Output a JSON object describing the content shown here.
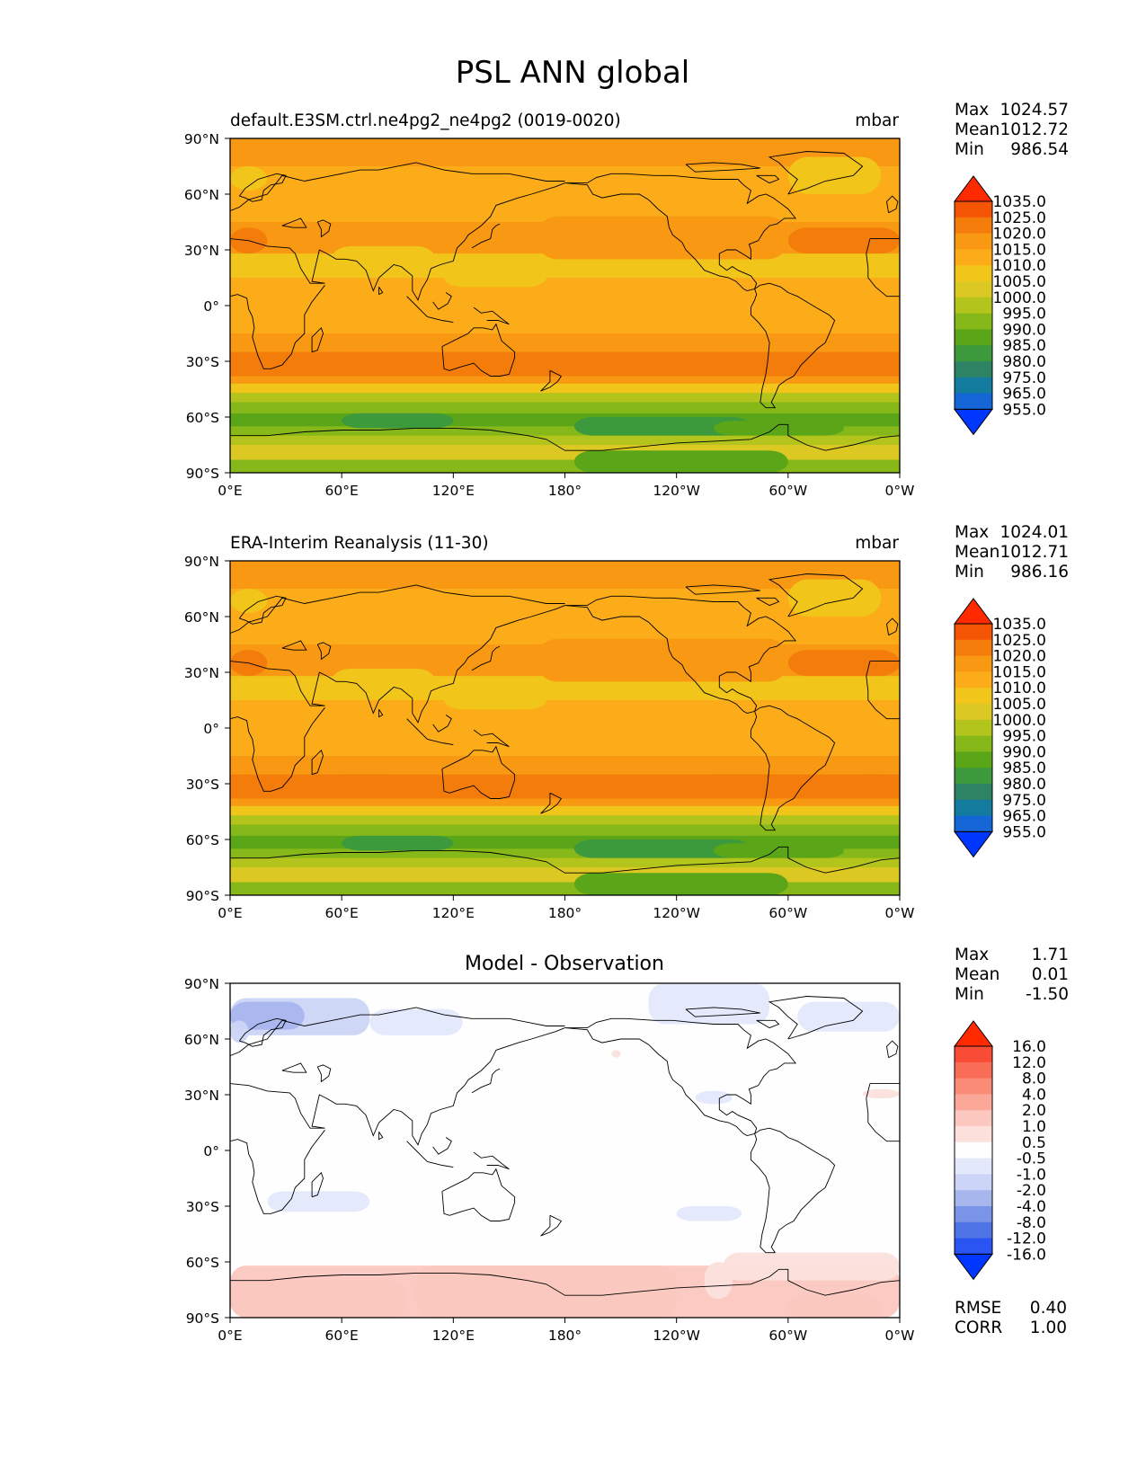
{
  "title": "PSL ANN global",
  "colors": {
    "psl_levels": [
      "#0037ff",
      "#1466d6",
      "#127b9e",
      "#2e8364",
      "#3c9a3c",
      "#5aa518",
      "#87b81a",
      "#b3c41c",
      "#dcc823",
      "#f2c51a",
      "#fbac18",
      "#f89813",
      "#f47c0b",
      "#f45505",
      "#ff2a00"
    ],
    "diff_levels": [
      "#0037ff",
      "#2a55f3",
      "#4e74e6",
      "#7a94e8",
      "#a8b6ee",
      "#ccd5f7",
      "#e3e8fb",
      "#fefefe",
      "#fbe0dc",
      "#fbc7bf",
      "#fba898",
      "#fa8b76",
      "#f96c56",
      "#f84c36",
      "#ff2a00"
    ],
    "coast": "#000000"
  },
  "panels": [
    {
      "id": "model",
      "title_left": "default.E3SM.ctrl.ne4pg2_ne4pg2 (0019-0020)",
      "title_center": "",
      "units": "mbar",
      "stats": [
        {
          "label": "Max",
          "value": "1024.57"
        },
        {
          "label": "Mean",
          "value": "1012.72"
        },
        {
          "label": "Min",
          "value": "986.54"
        }
      ],
      "colorbar_ticks": [
        "1035.0",
        "1025.0",
        "1020.0",
        "1015.0",
        "1010.0",
        "1005.0",
        "1000.0",
        "995.0",
        "990.0",
        "985.0",
        "980.0",
        "975.0",
        "965.0",
        "955.0"
      ],
      "metrics": []
    },
    {
      "id": "obs",
      "title_left": "ERA-Interim Reanalysis (11-30)",
      "title_center": "",
      "units": "mbar",
      "stats": [
        {
          "label": "Max",
          "value": "1024.01"
        },
        {
          "label": "Mean",
          "value": "1012.71"
        },
        {
          "label": "Min",
          "value": "986.16"
        }
      ],
      "colorbar_ticks": [
        "1035.0",
        "1025.0",
        "1020.0",
        "1015.0",
        "1010.0",
        "1005.0",
        "1000.0",
        "995.0",
        "990.0",
        "985.0",
        "980.0",
        "975.0",
        "965.0",
        "955.0"
      ],
      "metrics": []
    },
    {
      "id": "diff",
      "title_left": "",
      "title_center": "Model - Observation",
      "units": "",
      "stats": [
        {
          "label": "Max",
          "value": "1.71"
        },
        {
          "label": "Mean",
          "value": "0.01"
        },
        {
          "label": "Min",
          "value": "-1.50"
        }
      ],
      "colorbar_ticks": [
        "16.0",
        "12.0",
        "8.0",
        "4.0",
        "2.0",
        "1.0",
        "0.5",
        "-0.5",
        "-1.0",
        "-2.0",
        "-4.0",
        "-8.0",
        "-12.0",
        "-16.0"
      ],
      "metrics": [
        {
          "label": "RMSE",
          "value": "0.40"
        },
        {
          "label": "CORR",
          "value": "1.00"
        }
      ]
    }
  ],
  "lat_ticks": [
    "90°N",
    "60°N",
    "30°N",
    "0°",
    "30°S",
    "60°S",
    "90°S"
  ],
  "lon_ticks": [
    "0°E",
    "60°E",
    "120°E",
    "180°",
    "120°W",
    "60°W",
    "0°W"
  ]
}
